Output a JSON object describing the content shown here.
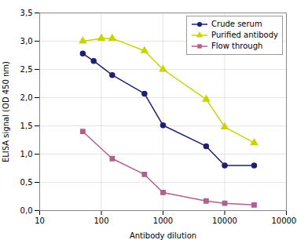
{
  "chart_data": {
    "type": "line",
    "xlabel": "Antibody dilution",
    "ylabel": "ELISA signal (OD 450 nm)",
    "log": "x",
    "grid": true,
    "legend": "upper right",
    "xlim": [
      10,
      100000
    ],
    "xticks": [
      10,
      100,
      1000,
      10000,
      100000
    ],
    "ylim": [
      0.0,
      3.5
    ],
    "yticks": [
      {
        "value": 0.0,
        "label": "0,0"
      },
      {
        "value": 0.5,
        "label": "0,5"
      },
      {
        "value": 1.0,
        "label": "1,0"
      },
      {
        "value": 1.5,
        "label": "1,5"
      },
      {
        "value": 2.0,
        "label": "2,0"
      },
      {
        "value": 2.5,
        "label": "2,5"
      },
      {
        "value": 3.0,
        "label": "3,0"
      },
      {
        "value": 3.5,
        "label": "3,5"
      }
    ],
    "series": [
      {
        "name": "Crude serum",
        "color": "#1e2070",
        "marker": "circle",
        "x": [
          50,
          75,
          150,
          500,
          1000,
          5000,
          10000,
          30000
        ],
        "values": [
          2.78,
          2.65,
          2.4,
          2.07,
          1.51,
          1.14,
          0.8,
          0.8
        ]
      },
      {
        "name": "Purified antibody",
        "color": "#c8d400",
        "marker": "triangle",
        "x": [
          50,
          100,
          150,
          500,
          1000,
          5000,
          10000,
          30000
        ],
        "values": [
          3.0,
          3.05,
          3.05,
          2.83,
          2.5,
          1.97,
          1.48,
          1.2
        ]
      },
      {
        "name": "Flow through",
        "color": "#b06090",
        "marker": "square",
        "x": [
          50,
          150,
          500,
          1000,
          5000,
          10000,
          30000
        ],
        "values": [
          1.4,
          0.92,
          0.64,
          0.32,
          0.17,
          0.13,
          0.1
        ]
      }
    ]
  }
}
